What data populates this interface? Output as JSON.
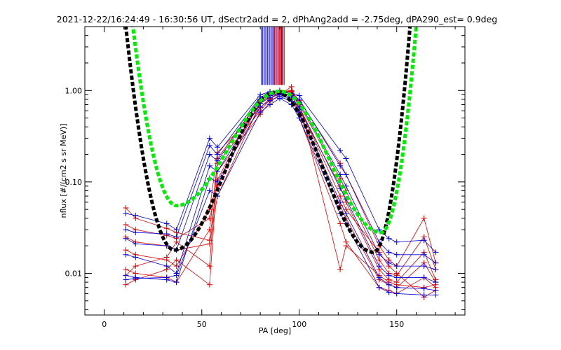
{
  "chart_data": {
    "type": "scatter",
    "title": "2021-12-22/16:24:49 - 16:30:56 UT, dSectr2add = 2, dPhAng2add = -2.75deg, dPA290_est=   0.9deg",
    "xlabel": "PA [deg]",
    "ylabel": "nflux [#/(cm2 s sr MeV)]",
    "xlim": [
      -10,
      185
    ],
    "ylim": [
      0.0035,
      5.0
    ],
    "yscale": "log",
    "xticks": [
      0,
      50,
      100,
      150
    ],
    "xtick_labels": [
      "0",
      "50",
      "100",
      "150"
    ],
    "yticks": [
      0.01,
      0.1,
      1.0
    ],
    "ytick_labels": [
      "0.01",
      "0.10",
      "1.00"
    ],
    "grid": false,
    "legend": "none",
    "colors": {
      "red_series": "#dd0000",
      "blue_series": "#0000dd",
      "black_fit": "#000000",
      "green_fit": "#00ee00",
      "axes": "#000000"
    },
    "pa_bins": [
      11,
      16,
      32,
      37,
      54,
      58,
      80,
      85,
      90,
      96,
      100,
      121,
      124,
      141,
      146,
      150,
      164,
      170
    ],
    "red_series": [
      {
        "name": "",
        "values": [
          0.052,
          0.04,
          0.031,
          0.028,
          0.023,
          0.105,
          0.85,
          0.92,
          0.96,
          0.98,
          0.78,
          0.16,
          0.12,
          0.02,
          0.014,
          0.012,
          0.04,
          0.013
        ]
      },
      {
        "name": "",
        "values": [
          0.034,
          0.03,
          0.026,
          0.024,
          0.04,
          0.09,
          0.78,
          0.95,
          1.0,
          0.96,
          0.7,
          0.11,
          0.08,
          0.014,
          0.01,
          0.0095,
          0.025,
          0.011
        ]
      },
      {
        "name": "",
        "values": [
          0.025,
          0.022,
          0.02,
          0.018,
          0.021,
          0.07,
          0.72,
          0.88,
          0.93,
          0.9,
          0.62,
          0.09,
          0.06,
          0.011,
          0.0085,
          0.008,
          0.017,
          0.0085
        ]
      },
      {
        "name": "",
        "values": [
          0.011,
          0.01,
          0.009,
          0.008,
          0.03,
          0.16,
          0.6,
          0.8,
          0.96,
          0.93,
          0.55,
          0.055,
          0.04,
          0.0085,
          0.0075,
          0.007,
          0.013,
          0.008
        ]
      },
      {
        "name": "",
        "values": [
          0.0075,
          0.0085,
          0.011,
          0.014,
          0.0075,
          0.13,
          0.55,
          0.75,
          0.9,
          1.1,
          0.5,
          0.035,
          0.022,
          0.007,
          0.0065,
          0.006,
          0.009,
          0.007
        ]
      },
      {
        "name": "",
        "values": [
          0.018,
          0.016,
          0.014,
          0.012,
          0.05,
          0.21,
          0.65,
          0.82,
          0.97,
          1.0,
          0.66,
          0.07,
          0.05,
          0.017,
          0.012,
          0.01,
          0.0055,
          0.0065
        ]
      },
      {
        "name": "",
        "values": [
          0.0095,
          0.012,
          0.015,
          0.022,
          0.012,
          0.18,
          0.8,
          0.93,
          1.0,
          0.97,
          0.75,
          0.011,
          0.02,
          0.0095,
          0.008,
          0.0075,
          0.007,
          0.0075
        ]
      }
    ],
    "blue_series": [
      {
        "name": "",
        "values": [
          0.045,
          0.043,
          0.035,
          0.03,
          0.3,
          0.24,
          0.9,
          0.97,
          0.98,
          0.93,
          0.88,
          0.22,
          0.18,
          0.03,
          0.024,
          0.022,
          0.023,
          0.017
        ]
      },
      {
        "name": "",
        "values": [
          0.03,
          0.028,
          0.027,
          0.025,
          0.25,
          0.2,
          0.85,
          0.92,
          0.95,
          0.88,
          0.8,
          0.15,
          0.12,
          0.022,
          0.017,
          0.016,
          0.016,
          0.013
        ]
      },
      {
        "name": "",
        "values": [
          0.024,
          0.021,
          0.02,
          0.018,
          0.2,
          0.17,
          0.8,
          0.88,
          0.92,
          0.84,
          0.74,
          0.12,
          0.09,
          0.016,
          0.013,
          0.012,
          0.012,
          0.011
        ]
      },
      {
        "name": "",
        "values": [
          0.016,
          0.015,
          0.012,
          0.01,
          0.15,
          0.13,
          0.72,
          0.84,
          0.9,
          0.8,
          0.66,
          0.085,
          0.065,
          0.012,
          0.0095,
          0.009,
          0.009,
          0.008
        ]
      },
      {
        "name": "",
        "values": [
          0.0095,
          0.009,
          0.0085,
          0.008,
          0.11,
          0.1,
          0.66,
          0.78,
          0.86,
          0.76,
          0.58,
          0.06,
          0.045,
          0.009,
          0.0075,
          0.007,
          0.0068,
          0.0065
        ]
      },
      {
        "name": "",
        "values": [
          0.0085,
          0.0088,
          0.009,
          0.0095,
          0.08,
          0.07,
          0.58,
          0.7,
          0.82,
          0.7,
          0.5,
          0.045,
          0.035,
          0.007,
          0.0062,
          0.006,
          0.0058,
          0.0058
        ]
      }
    ],
    "fit_black": {
      "name": "",
      "min_left": {
        "x": 36,
        "y": 0.018
      },
      "peak": {
        "x": 88,
        "y": 0.96
      },
      "min_right": {
        "x": 138,
        "y": 0.017
      }
    },
    "fit_green": {
      "name": "",
      "min_left": {
        "x": 37,
        "y": 0.055
      },
      "peak": {
        "x": 90,
        "y": 0.98
      },
      "min_right": {
        "x": 142,
        "y": 0.028
      }
    },
    "marker_lines": {
      "y_from": 1.15,
      "y_to": 5.0,
      "blue_x": [
        80.5,
        81.2,
        81.9,
        82.5,
        83.1,
        83.7,
        84.3,
        84.9,
        85.5,
        86.1,
        86.7,
        87.3,
        87.9,
        88.5,
        89.1,
        89.7,
        90.3,
        90.9,
        91.5
      ],
      "red_x": [
        87.1,
        87.8,
        88.6,
        89.2,
        89.8,
        90.5,
        91.1,
        91.8,
        92.4
      ]
    }
  }
}
